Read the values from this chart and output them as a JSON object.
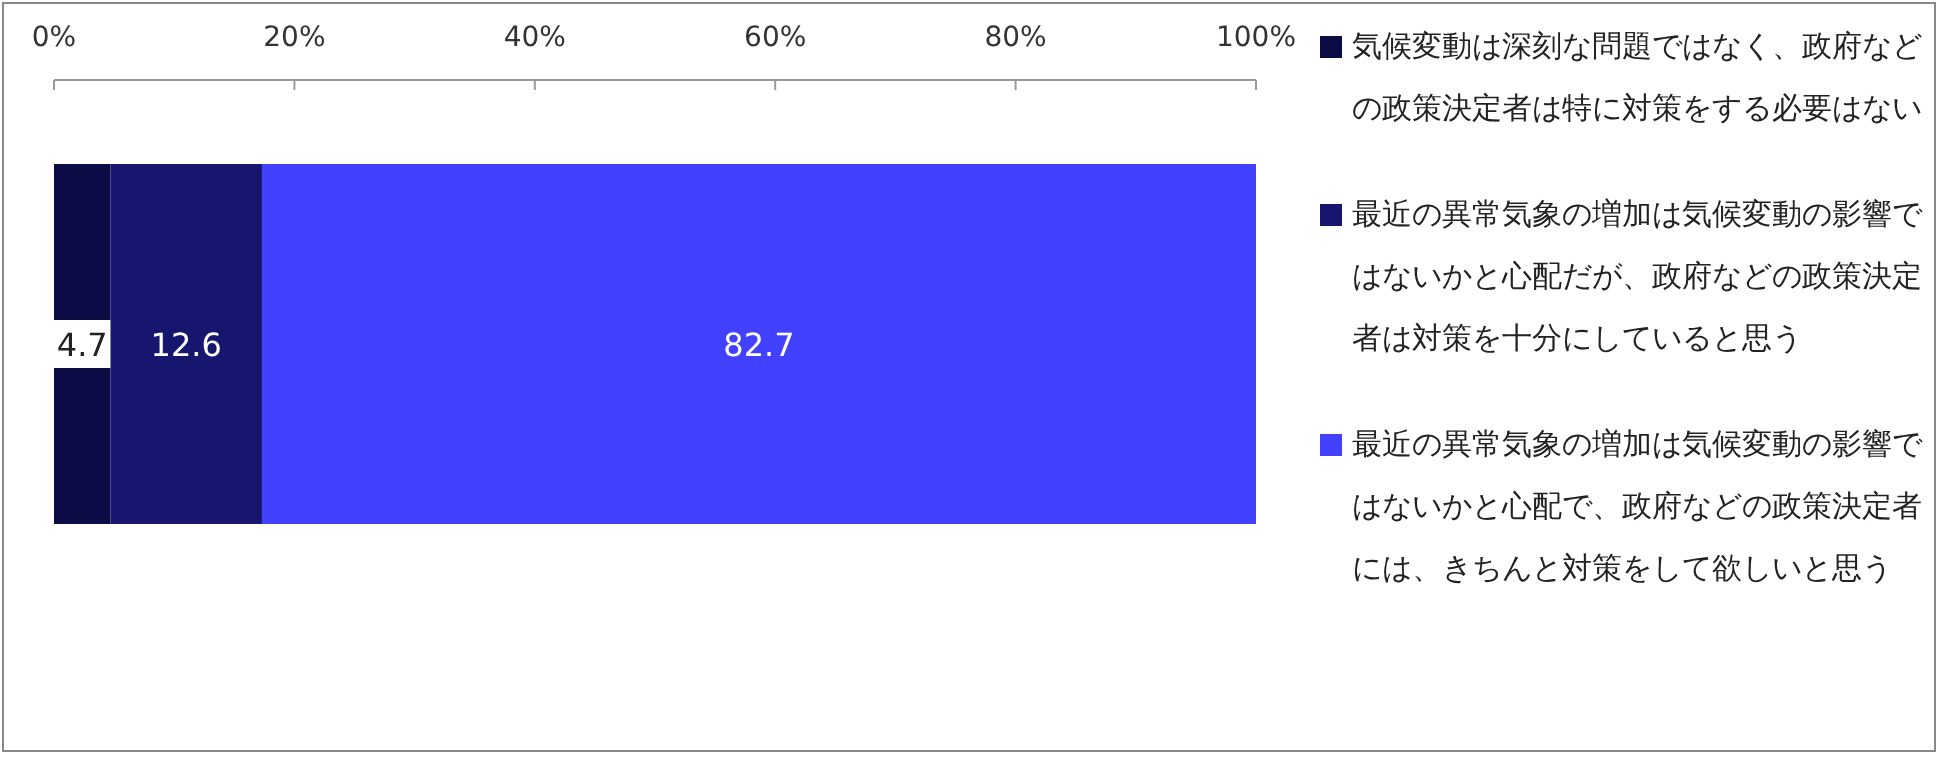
{
  "chart_data": {
    "type": "bar",
    "orientation": "horizontal",
    "stacked": true,
    "categories": [
      null
    ],
    "series": [
      {
        "name": "気候変動は深刻な問題ではなく、政府などの政策決定者は特に対策をする必要はない",
        "color": "#0b0b45",
        "values": [
          4.7
        ]
      },
      {
        "name": "最近の異常気象の増加は気候変動の影響ではないかと心配だが、政府などの政策決定者は対策を十分にしていると思う",
        "color": "#16166e",
        "values": [
          12.6
        ]
      },
      {
        "name": "最近の異常気象の増加は気候変動の影響ではないかと心配で、政府などの政策決定者には、きちんと対策をして欲しいと思う",
        "color": "#4141ff",
        "values": [
          82.7
        ]
      }
    ],
    "xlim": [
      0,
      100
    ],
    "xticks": [
      {
        "value": 0,
        "label": "0%"
      },
      {
        "value": 20,
        "label": "20%"
      },
      {
        "value": 40,
        "label": "40%"
      },
      {
        "value": 60,
        "label": "60%"
      },
      {
        "value": 80,
        "label": "80%"
      },
      {
        "value": 100,
        "label": "100%"
      }
    ],
    "data_labels": true,
    "legend": "right",
    "grid": false
  }
}
